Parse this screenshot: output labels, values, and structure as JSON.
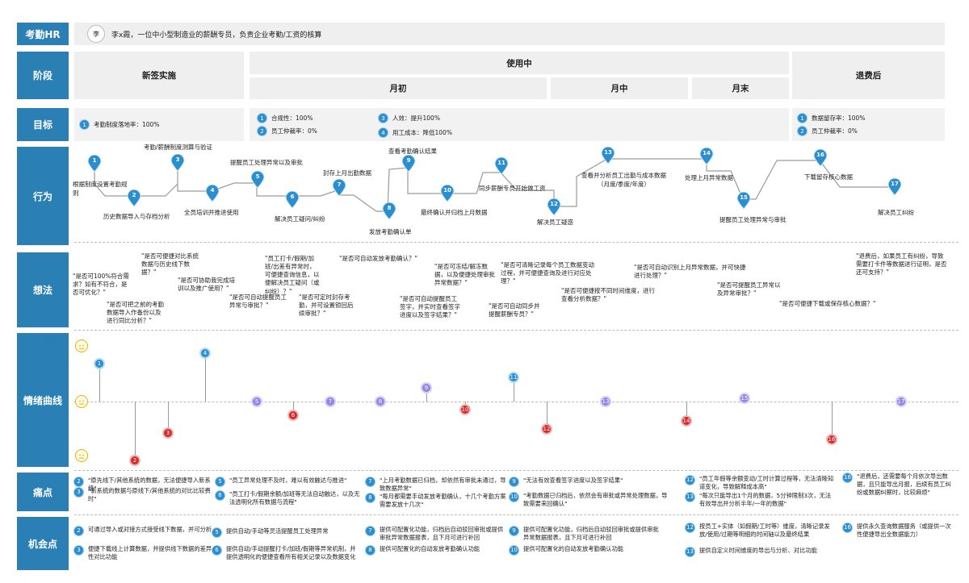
{
  "rows": {
    "persona_hdr": "考勤HR",
    "stage_hdr": "阶段",
    "goal_hdr": "目标",
    "action_hdr": "行为",
    "thought_hdr": "想法",
    "emotion_hdr": "情绪曲线",
    "pain_hdr": "痛点",
    "opp_hdr": "机会点"
  },
  "persona": {
    "avatar": "李",
    "desc": "李x霞，一位中小型制造业的薪酬专员，负责企业考勤/工资的核算"
  },
  "stages": {
    "s1": "新签实施",
    "s2": "使用中",
    "s2a": "月初",
    "s2b": "月中",
    "s2c": "月末",
    "s3": "退费后"
  },
  "goals": {
    "g1": {
      "n": "1",
      "t": "考勤制度落地率：100%"
    },
    "g2": {
      "n": "1",
      "t": "合规性：100%"
    },
    "g3": {
      "n": "2",
      "t": "员工仲裁率：0%"
    },
    "g4": {
      "n": "3",
      "t": "人效：提升100%"
    },
    "g5": {
      "n": "4",
      "t": "用工成本：降低100%"
    },
    "g6": {
      "n": "1",
      "t": "数据留存率：100%"
    },
    "g7": {
      "n": "2",
      "t": "员工仲裁率：0%"
    }
  },
  "actions": {
    "a1": "根据制度设置考勤规则",
    "a2": "历史数据导入与存档分析",
    "a3": "考勤/薪酬制度测算与验证",
    "a4": "全员培训并推进使用",
    "a5": "提醒员工处理异常以及审批",
    "a6": "解决员工疑问/纠纷",
    "a7": "封存上月出勤数据",
    "a8": "发放考勤确认单",
    "a9": "查看考勤确认结果",
    "a10": "最终确认并归档上月数据",
    "a11": "同步薪酬专员开始做工资",
    "a12": "解决员工疑惑",
    "a13": "查看并分析员工出勤与成本数据（月度/季度/年度）",
    "a14": "处理上月异常数据",
    "a15": "提醒员工处理异常与审批",
    "a16": "下载留存核心数据",
    "a17": "解决员工纠纷"
  },
  "pins": [
    "1",
    "2",
    "3",
    "4",
    "5",
    "6",
    "7",
    "8",
    "9",
    "10",
    "11",
    "12",
    "13",
    "14",
    "15",
    "16",
    "17"
  ],
  "thoughts": {
    "t1": "\"是否可100%符合需求？如有不符合，是否可优化？\"",
    "t2": "\"是否可把之前的考勤数据导入作备份以及进行同比分析？\"",
    "t3": "\"是否可便捷对比系统数据与历史线下数据？\"",
    "t4": "\"是否可协助我完成培训以及推广使用？\"",
    "t5": "\"是否可自动提醒员工异常与审批？\"",
    "t6": "\"员工打卡/假期/加班/出差有异常时，可便捷查询信息，以便解决员工疑问（或纠纷）？\"",
    "t7": "\"是否可定时封存考勤，并可设置锁回后续审批？\"",
    "t8": "\"是否可自动发放考勤确认？\"",
    "t9": "\"是否可自动提醒员工签字，并实时查看签字进度以及签字结果？\"",
    "t10": "\"是否可冻结/解冻数据，以及便捷处理审批异常数据？\"",
    "t11": "\"是否可自动同步并提醒薪酬专员？\"",
    "t12": "\"是否可清晰记录每个员工数据变动过程，并可便捷查询及进行对应处理？\"",
    "t13": "\"是否可便捷按不同时间维度，进行查看分析数据？\"",
    "t14": "\"是否可自动识别上月异常数据，并可快捷进行处理？\"",
    "t15": "\"是否可提醒员工异常以及异常审批？\"",
    "t16": "\"是否可便捷下载或保存核心数据？\"",
    "t17": "\"退费后，如果员工有纠纷，导致需要打卡件等数据进行证明，是否还可支持？\""
  },
  "emotion": {
    "high": "非常爽",
    "low": "非常不爽"
  },
  "emotion_points": [
    {
      "n": "1",
      "c": "blue",
      "v": 0.55
    },
    {
      "n": "2",
      "c": "red",
      "v": -0.85
    },
    {
      "n": "3",
      "c": "red",
      "v": -0.45
    },
    {
      "n": "4",
      "c": "blue",
      "v": 0.7
    },
    {
      "n": "5",
      "c": "purple",
      "v": 0.0
    },
    {
      "n": "6",
      "c": "red",
      "v": -0.2
    },
    {
      "n": "7",
      "c": "purple",
      "v": 0.0
    },
    {
      "n": "8",
      "c": "purple",
      "v": 0.0
    },
    {
      "n": "9",
      "c": "purple",
      "v": 0.2
    },
    {
      "n": "10",
      "c": "red",
      "v": -0.12
    },
    {
      "n": "11",
      "c": "blue",
      "v": 0.35
    },
    {
      "n": "12",
      "c": "red",
      "v": -0.4
    },
    {
      "n": "13",
      "c": "purple",
      "v": 0.0
    },
    {
      "n": "14",
      "c": "red",
      "v": -0.28
    },
    {
      "n": "15",
      "c": "purple",
      "v": 0.05
    },
    {
      "n": "16",
      "c": "red",
      "v": -0.55
    },
    {
      "n": "17",
      "c": "purple",
      "v": 0.0
    }
  ],
  "pains": {
    "p2": {
      "n": "2",
      "t": "\"原先线下/其他系统的数据，无法便捷导入新系统\""
    },
    "p3": {
      "n": "3",
      "t": "\"新系统的数据与原线下/其他系统的对比比较费时\""
    },
    "p5": {
      "n": "5",
      "t": "\"员工异常处理不及时，难以有效触达与推进\""
    },
    "p6": {
      "n": "6",
      "t": "\"员工打卡/假期余额/加班等无法自动触达，以及无法透明化所有数据与流程\""
    },
    "p7": {
      "n": "7",
      "t": "\"上月考勤数据已归档，却依然有审批未通过，导致数据异常\""
    },
    "p8": {
      "n": "8",
      "t": "\"每月都需要手动发放考勤确认，十几个考勤方案需要发放十几次\""
    },
    "p9": {
      "n": "9",
      "t": "\"无法有效查看签字进度以及签字结果\""
    },
    "p10": {
      "n": "10",
      "t": "\"考勤数据已归档后，依然会有审批或异常处理数据，导致需要来回确认\""
    },
    "p12": {
      "n": "12",
      "t": "\"员工年假等余额变动/工时计算过程等，无法清晰知道变化，导致解释成本高\""
    },
    "p13": {
      "n": "13",
      "t": "\"每次只能导出1个月的数据，5分钟限制3次，无法有效导出并分析半年/一年的数据\""
    },
    "p16": {
      "n": "16",
      "t": "\"退费后，还需要每个月依次导出数据，且只能导出月报，后续有员工纠纷或数据纠察时，比较麻烦\""
    }
  },
  "opps": {
    "o2": {
      "n": "2",
      "t": "可通过导入或对接方式接受线下数据，并可分析"
    },
    "o3": {
      "n": "3",
      "t": "便捷下载线上计算数据，并提供线下数据的差异性对比功能"
    },
    "o5": {
      "n": "5",
      "t": "提供自动/手动等灵活提醒员工处理异常"
    },
    "o6": {
      "n": "6",
      "t": "提供自动/手动提醒打卡/加班/假期等异常机制，并提供透明化的便捷查看所有相关记录以及数据变化"
    },
    "o7": {
      "n": "7",
      "t": "提供可配置化功能，归档后自动驳回审批或提供审批异常数据报表，且下月可进行补回"
    },
    "o8": {
      "n": "8",
      "t": "提供可配置化的自动发放考勤确认功能"
    },
    "o9": {
      "n": "9",
      "t": "提供可配置化功能，归档后自动驳回审批或提供审批异常数据报表，且下月可进行补回"
    },
    "o10": {
      "n": "10",
      "t": "提供可配置化的自动发放考勤确认功能"
    },
    "o12": {
      "n": "12",
      "t": "按员工+实体（如假期/工时等）维度，清晰记录发放/使用/过期等明细的时间轴以及最终结果"
    },
    "o13": {
      "n": "13",
      "t": "提供自定义时间维度的导出与分析、对比功能"
    },
    "o16": {
      "n": "16",
      "t": "提供永久查询数据服务（或提供一次性便捷导出全数据能力）"
    }
  },
  "colors": {
    "header": "#2a7fb5",
    "pin": "#2b8fcf",
    "red": "#d42a2a",
    "purple": "#8f86e6"
  }
}
